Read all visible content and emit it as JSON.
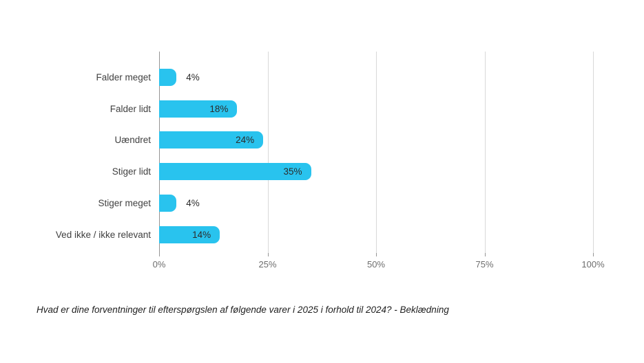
{
  "chart_data": {
    "type": "bar",
    "orientation": "horizontal",
    "title": "",
    "categories": [
      "Falder meget",
      "Falder lidt",
      "Uændret",
      "Stiger lidt",
      "Stiger meget",
      "Ved ikke / ikke relevant"
    ],
    "values": [
      4,
      18,
      24,
      35,
      4,
      14
    ],
    "value_labels": [
      "4%",
      "18%",
      "24%",
      "35%",
      "4%",
      "14%"
    ],
    "x_tick_labels": [
      "0%",
      "25%",
      "50%",
      "75%",
      "100%"
    ],
    "x_tick_values": [
      0,
      25,
      50,
      75,
      100
    ],
    "xlim": [
      0,
      100
    ],
    "grid": "vertical",
    "legend": "none",
    "bar_color": "#29c3ee",
    "caption": "Hvad er dine forventninger til efterspørgslen af følgende varer i 2025 i forhold til 2024? - Beklædning"
  }
}
